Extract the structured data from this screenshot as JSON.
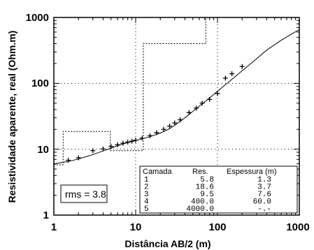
{
  "chart_data": {
    "type": "line",
    "xlabel": "Distância AB/2 (m)",
    "ylabel": "Resistividade aparente, real (Ohm.m)",
    "xscale": "log",
    "yscale": "log",
    "xlim": [
      1,
      1000
    ],
    "ylim": [
      1,
      1000
    ],
    "xticks": [
      "1",
      "10",
      "100",
      "1000"
    ],
    "yticks": [
      "1",
      "10",
      "100",
      "1000"
    ],
    "grid": "dotted",
    "series": [
      {
        "kind": "model-curve",
        "style": "solid-line",
        "x": [
          1,
          1.5,
          2,
          3,
          4,
          5,
          6,
          8,
          10,
          12,
          15,
          20,
          25,
          30,
          40,
          50,
          60,
          80,
          100,
          150,
          200,
          300,
          400,
          600,
          800,
          1000
        ],
        "y": [
          6.0,
          6.5,
          7.1,
          8.3,
          9.4,
          10.4,
          11.3,
          12.6,
          13.6,
          14.4,
          15.5,
          17.6,
          20.0,
          23.0,
          30.0,
          37.5,
          45.0,
          60.0,
          76.0,
          115,
          155,
          235,
          320,
          450,
          560,
          650
        ]
      },
      {
        "kind": "field-data",
        "style": "plus-markers",
        "x": [
          1.5,
          2,
          3,
          4,
          5,
          6,
          7,
          8,
          9,
          10,
          12,
          15,
          18,
          22,
          26,
          30,
          35,
          45,
          55,
          65,
          80,
          100,
          125,
          150,
          200
        ],
        "y": [
          6.8,
          7.4,
          9.5,
          10.1,
          11.0,
          11.7,
          12.3,
          12.8,
          13.2,
          13.7,
          14.7,
          16.0,
          17.8,
          20.0,
          22.4,
          25.0,
          28.0,
          36.0,
          42.0,
          50.0,
          57.0,
          70.0,
          120,
          140,
          180
        ]
      },
      {
        "kind": "layer-model",
        "style": "dotted-step",
        "x": [
          1,
          1.3,
          1.3,
          4.9,
          4.9,
          12.4,
          12.4,
          72,
          72
        ],
        "y": [
          5.8,
          5.8,
          18.6,
          18.6,
          9.5,
          9.5,
          400,
          400,
          1000
        ]
      }
    ]
  },
  "table": {
    "headers": [
      "Camada",
      "Res.",
      "Espessura (m)"
    ],
    "rows": [
      [
        "1",
        "5.8",
        "1.3"
      ],
      [
        "2",
        "18.6",
        "3.7"
      ],
      [
        "3",
        "9.5",
        "7.6"
      ],
      [
        "4",
        "400.0",
        "60.0"
      ],
      [
        "5",
        "4000.0",
        "-.-"
      ]
    ]
  },
  "rms": "rms = 3.8"
}
